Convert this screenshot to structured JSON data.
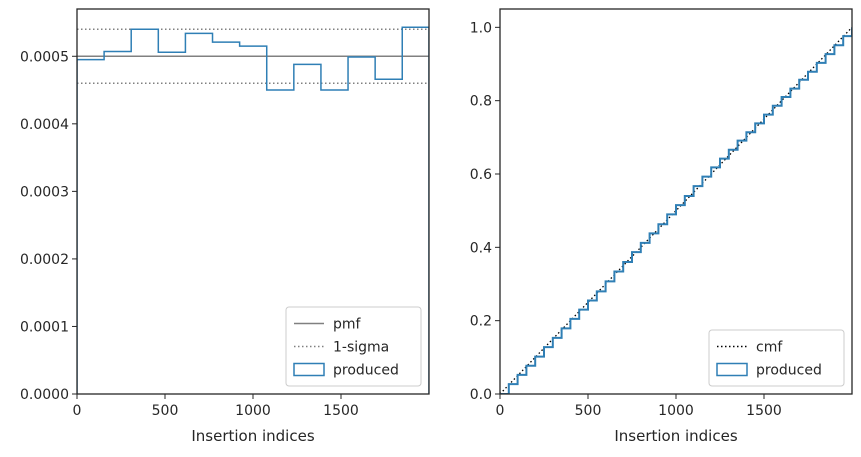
{
  "chart_data": [
    {
      "type": "histogram-step",
      "xlabel": "Insertion indices",
      "ylabel": "",
      "xlim": [
        0,
        2000
      ],
      "ylim": [
        0,
        0.00057
      ],
      "xticks": [
        0,
        500,
        1000,
        1500
      ],
      "yticks": [
        0,
        0.0001,
        0.0002,
        0.0003,
        0.0004,
        0.0005
      ],
      "ytick_labels": [
        "0.0000",
        "0.0001",
        "0.0002",
        "0.0003",
        "0.0004",
        "0.0005"
      ],
      "legend_position": "lower right",
      "lines": [
        {
          "name": "pmf",
          "y": 0.0005,
          "color": "#808080",
          "style": "solid"
        },
        {
          "name": "1-sigma",
          "y": [
            0.00046,
            0.00054
          ],
          "color": "#808080",
          "style": "dotted"
        }
      ],
      "series": [
        {
          "name": "produced",
          "color": "#2f7fb5",
          "bin_edges": [
            0,
            154,
            308,
            462,
            616,
            770,
            924,
            1078,
            1232,
            1386,
            1540,
            1694,
            1848,
            2000
          ],
          "values": [
            0.000495,
            0.000507,
            0.00054,
            0.000506,
            0.000534,
            0.000521,
            0.000515,
            0.00045,
            0.000488,
            0.00045,
            0.000499,
            0.000466,
            0.000543
          ]
        }
      ]
    },
    {
      "type": "line",
      "xlabel": "Insertion indices",
      "ylabel": "",
      "xlim": [
        0,
        2000
      ],
      "ylim": [
        0,
        1.05
      ],
      "xticks": [
        0,
        500,
        1000,
        1500
      ],
      "yticks": [
        0.0,
        0.2,
        0.4,
        0.6,
        0.8,
        1.0
      ],
      "ytick_labels": [
        "0.0",
        "0.2",
        "0.4",
        "0.6",
        "0.8",
        "1.0"
      ],
      "legend_position": "lower right",
      "series": [
        {
          "name": "cmf",
          "color": "#000000",
          "style": "dotted",
          "x": [
            0,
            2000
          ],
          "y": [
            0,
            1.0
          ]
        },
        {
          "name": "produced",
          "color": "#2f7fb5",
          "style": "step",
          "x": [
            0,
            50,
            100,
            150,
            200,
            250,
            300,
            350,
            400,
            450,
            500,
            550,
            600,
            650,
            700,
            750,
            800,
            850,
            900,
            950,
            1000,
            1050,
            1100,
            1150,
            1200,
            1250,
            1300,
            1350,
            1400,
            1450,
            1500,
            1550,
            1600,
            1650,
            1700,
            1750,
            1800,
            1850,
            1900,
            1950,
            2000
          ],
          "y": [
            0,
            0.027,
            0.052,
            0.077,
            0.102,
            0.128,
            0.153,
            0.179,
            0.205,
            0.23,
            0.255,
            0.28,
            0.307,
            0.334,
            0.36,
            0.387,
            0.412,
            0.438,
            0.463,
            0.49,
            0.515,
            0.54,
            0.567,
            0.593,
            0.618,
            0.642,
            0.666,
            0.691,
            0.714,
            0.738,
            0.762,
            0.786,
            0.81,
            0.833,
            0.857,
            0.879,
            0.903,
            0.927,
            0.951,
            0.976,
            1.0
          ]
        }
      ]
    }
  ]
}
